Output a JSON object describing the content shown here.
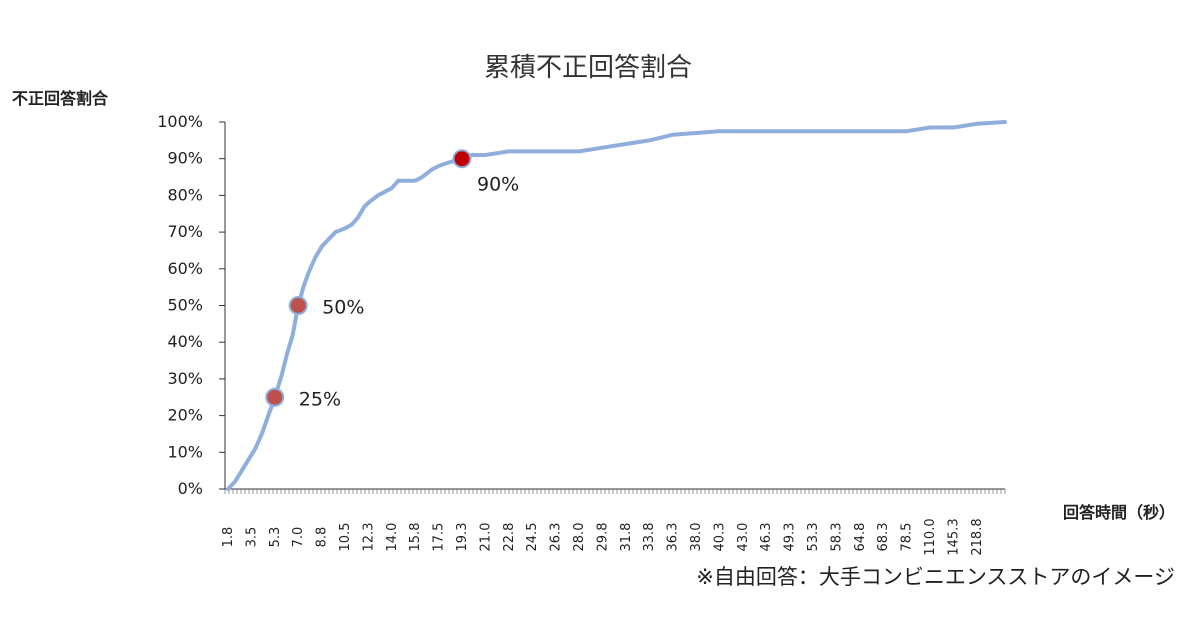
{
  "chart_data": {
    "type": "line",
    "title": "累積不正回答割合",
    "ylabel": "不正回答割合",
    "xlabel": "回答時間（秒）",
    "note": "※自由回答：大手コンビニエンスストアのイメージ",
    "ylim": [
      0,
      100
    ],
    "y_ticks": [
      "0%",
      "10%",
      "20%",
      "30%",
      "40%",
      "50%",
      "60%",
      "70%",
      "80%",
      "90%",
      "100%"
    ],
    "x_tick_labels": [
      "1.8",
      "3.5",
      "5.3",
      "7.0",
      "8.8",
      "10.5",
      "12.3",
      "14.0",
      "15.8",
      "17.5",
      "19.3",
      "21.0",
      "22.8",
      "24.5",
      "26.3",
      "28.0",
      "29.8",
      "31.8",
      "33.8",
      "36.3",
      "38.0",
      "40.3",
      "43.0",
      "46.3",
      "49.3",
      "53.3",
      "58.3",
      "64.8",
      "68.3",
      "78.5",
      "110.0",
      "145.3",
      "218.8"
    ],
    "grid": false,
    "line_color": "#8FAEDC",
    "series": [
      {
        "values": [
          [
            1.8,
            0
          ],
          [
            2.3,
            2
          ],
          [
            2.8,
            5
          ],
          [
            3.3,
            8
          ],
          [
            3.8,
            11
          ],
          [
            4.3,
            15
          ],
          [
            4.8,
            20
          ],
          [
            5.3,
            25
          ],
          [
            5.8,
            31
          ],
          [
            6.2,
            37
          ],
          [
            6.6,
            42
          ],
          [
            7.0,
            50
          ],
          [
            7.4,
            55
          ],
          [
            7.8,
            59
          ],
          [
            8.3,
            63
          ],
          [
            8.8,
            66
          ],
          [
            9.3,
            68
          ],
          [
            9.8,
            70
          ],
          [
            10.5,
            71
          ],
          [
            11.0,
            72
          ],
          [
            11.5,
            74
          ],
          [
            12.0,
            77
          ],
          [
            12.3,
            78
          ],
          [
            13.0,
            80
          ],
          [
            14.0,
            82
          ],
          [
            14.5,
            84
          ],
          [
            15.8,
            84
          ],
          [
            16.3,
            85
          ],
          [
            17.0,
            87
          ],
          [
            17.5,
            88
          ],
          [
            18.3,
            89
          ],
          [
            19.3,
            90
          ],
          [
            20.0,
            91
          ],
          [
            21.0,
            91
          ],
          [
            22.8,
            92
          ],
          [
            24.5,
            92
          ],
          [
            26.3,
            92
          ],
          [
            28.0,
            92
          ],
          [
            29.8,
            93
          ],
          [
            31.8,
            94
          ],
          [
            33.8,
            95
          ],
          [
            36.3,
            96.5
          ],
          [
            38.0,
            97
          ],
          [
            40.3,
            97.5
          ],
          [
            43.0,
            97.5
          ],
          [
            46.3,
            97.5
          ],
          [
            49.3,
            97.5
          ],
          [
            53.3,
            97.5
          ],
          [
            58.3,
            97.5
          ],
          [
            64.8,
            97.5
          ],
          [
            68.3,
            97.5
          ],
          [
            78.5,
            97.5
          ],
          [
            110.0,
            98.5
          ],
          [
            145.3,
            98.5
          ],
          [
            218.8,
            99.5
          ],
          [
            300,
            100
          ]
        ]
      }
    ],
    "highlight_points": [
      {
        "label": "25%",
        "x": 5.3,
        "y": 25,
        "color": "#C0504D"
      },
      {
        "label": "50%",
        "x": 7.0,
        "y": 50,
        "color": "#C0504D"
      },
      {
        "label": "90%",
        "x": 19.3,
        "y": 90,
        "color": "#C00000"
      }
    ]
  }
}
